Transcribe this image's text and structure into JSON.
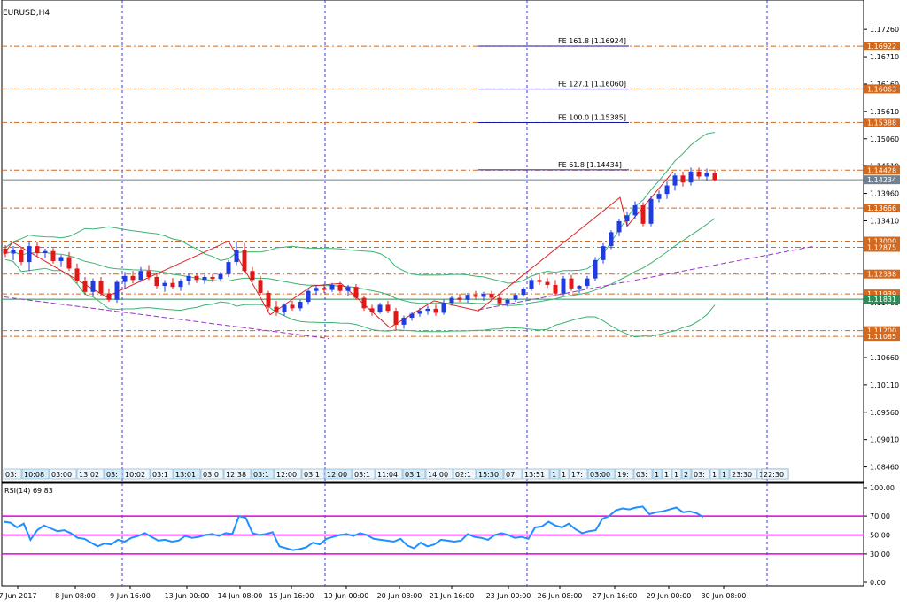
{
  "window": {
    "title": "EURUSD,H4"
  },
  "chart_data": {
    "type": "candlestick",
    "symbol": "EURUSD",
    "timeframe": "H4",
    "ylim": [
      1.0815,
      1.1785
    ],
    "y_ticks": [
      "1.17260",
      "1.16710",
      "1.16160",
      "1.15610",
      "1.15060",
      "1.14510",
      "1.13960",
      "1.13410",
      "1.12860",
      "1.12310",
      "1.11760",
      "1.11210",
      "1.10660",
      "1.10110",
      "1.09560",
      "1.09010",
      "1.08460"
    ],
    "x_ticks": [
      "7 Jun 2017",
      "8 Jun 08:00",
      "9 Jun 16:00",
      "13 Jun 00:00",
      "14 Jun 08:00",
      "15 Jun 16:00",
      "19 Jun 00:00",
      "20 Jun 08:00",
      "21 Jun 16:00",
      "23 Jun 00:00",
      "26 Jun 08:00",
      "27 Jun 16:00",
      "29 Jun 00:00",
      "30 Jun 08:00"
    ],
    "price_tags": [
      {
        "label": "1.16922",
        "value": 1.16922,
        "color": "#d2691e"
      },
      {
        "label": "1.16063",
        "value": 1.16063,
        "color": "#d2691e"
      },
      {
        "label": "1.15388",
        "value": 1.15388,
        "color": "#d2691e"
      },
      {
        "label": "1.14428",
        "value": 1.14428,
        "color": "#d2691e"
      },
      {
        "label": "1.14234",
        "value": 1.14234,
        "color": "#708090"
      },
      {
        "label": "1.13666",
        "value": 1.13666,
        "color": "#d2691e"
      },
      {
        "label": "1.13000",
        "value": 1.13,
        "color": "#d2691e"
      },
      {
        "label": "1.12875",
        "value": 1.12875,
        "color": "#d2691e"
      },
      {
        "label": "1.12338",
        "value": 1.12338,
        "color": "#d2691e"
      },
      {
        "label": "1.11939",
        "value": 1.11939,
        "color": "#d2691e"
      },
      {
        "label": "1.11831",
        "value": 1.11831,
        "color": "#2e8b57"
      },
      {
        "label": "1.11200",
        "value": 1.112,
        "color": "#d2691e"
      },
      {
        "label": "1.11085",
        "value": 1.11085,
        "color": "#d2691e"
      }
    ],
    "fibo_labels": [
      {
        "label": "FE 161.8 [1.16924]",
        "value": 1.16924
      },
      {
        "label": "FE 127.1 [1.16060]",
        "value": 1.1606
      },
      {
        "label": "FE 100.0 [1.15385]",
        "value": 1.15385
      },
      {
        "label": "FE 61.8 [1.14434]",
        "value": 1.14434
      }
    ],
    "candles": [
      [
        1.1285,
        1.1292,
        1.1268,
        1.1275
      ],
      [
        1.1275,
        1.129,
        1.1262,
        1.1283
      ],
      [
        1.1283,
        1.1288,
        1.1252,
        1.1258
      ],
      [
        1.1258,
        1.13,
        1.124,
        1.129
      ],
      [
        1.129,
        1.1298,
        1.127,
        1.1276
      ],
      [
        1.1276,
        1.1285,
        1.1265,
        1.128
      ],
      [
        1.128,
        1.1286,
        1.1255,
        1.126
      ],
      [
        1.126,
        1.1272,
        1.1248,
        1.1268
      ],
      [
        1.1268,
        1.1278,
        1.124,
        1.1245
      ],
      [
        1.1245,
        1.1255,
        1.1215,
        1.122
      ],
      [
        1.122,
        1.1228,
        1.1192,
        1.1198
      ],
      [
        1.1198,
        1.1225,
        1.119,
        1.122
      ],
      [
        1.122,
        1.1228,
        1.119,
        1.1195
      ],
      [
        1.1195,
        1.1205,
        1.1178,
        1.1182
      ],
      [
        1.1182,
        1.1222,
        1.1176,
        1.1218
      ],
      [
        1.1218,
        1.1238,
        1.1206,
        1.123
      ],
      [
        1.123,
        1.124,
        1.1215,
        1.1222
      ],
      [
        1.1222,
        1.1248,
        1.1218,
        1.124
      ],
      [
        1.124,
        1.1252,
        1.1222,
        1.1228
      ],
      [
        1.1228,
        1.1234,
        1.1205,
        1.121
      ],
      [
        1.121,
        1.1222,
        1.1198,
        1.1216
      ],
      [
        1.1216,
        1.1226,
        1.1204,
        1.1208
      ],
      [
        1.1208,
        1.1224,
        1.12,
        1.122
      ],
      [
        1.122,
        1.1236,
        1.1212,
        1.123
      ],
      [
        1.123,
        1.1236,
        1.1216,
        1.1222
      ],
      [
        1.1222,
        1.1232,
        1.1214,
        1.1228
      ],
      [
        1.1228,
        1.1234,
        1.1218,
        1.1224
      ],
      [
        1.1224,
        1.1238,
        1.122,
        1.1234
      ],
      [
        1.1234,
        1.1262,
        1.1228,
        1.1258
      ],
      [
        1.1258,
        1.13,
        1.1252,
        1.1282
      ],
      [
        1.1282,
        1.1296,
        1.1236,
        1.124
      ],
      [
        1.124,
        1.1248,
        1.1218,
        1.1222
      ],
      [
        1.1222,
        1.123,
        1.1192,
        1.1196
      ],
      [
        1.1196,
        1.12,
        1.116,
        1.1168
      ],
      [
        1.1168,
        1.118,
        1.115,
        1.1158
      ],
      [
        1.1158,
        1.1175,
        1.115,
        1.1172
      ],
      [
        1.1172,
        1.118,
        1.116,
        1.1165
      ],
      [
        1.1165,
        1.1182,
        1.116,
        1.1178
      ],
      [
        1.1178,
        1.1205,
        1.1172,
        1.12
      ],
      [
        1.12,
        1.1212,
        1.1192,
        1.1206
      ],
      [
        1.1206,
        1.1214,
        1.1196,
        1.1202
      ],
      [
        1.1202,
        1.1216,
        1.1198,
        1.1212
      ],
      [
        1.1212,
        1.1218,
        1.1196,
        1.12
      ],
      [
        1.12,
        1.1212,
        1.119,
        1.1208
      ],
      [
        1.1208,
        1.1214,
        1.1182,
        1.1186
      ],
      [
        1.1186,
        1.119,
        1.116,
        1.1165
      ],
      [
        1.1165,
        1.1172,
        1.115,
        1.1158
      ],
      [
        1.1158,
        1.1176,
        1.1154,
        1.1172
      ],
      [
        1.1172,
        1.118,
        1.1155,
        1.116
      ],
      [
        1.116,
        1.1166,
        1.112,
        1.1132
      ],
      [
        1.1132,
        1.115,
        1.1124,
        1.1146
      ],
      [
        1.1146,
        1.1158,
        1.114,
        1.1154
      ],
      [
        1.1154,
        1.1166,
        1.1148,
        1.116
      ],
      [
        1.116,
        1.117,
        1.1152,
        1.1164
      ],
      [
        1.1164,
        1.1172,
        1.115,
        1.1156
      ],
      [
        1.1156,
        1.1182,
        1.1152,
        1.1176
      ],
      [
        1.1176,
        1.119,
        1.117,
        1.1186
      ],
      [
        1.1186,
        1.1194,
        1.1178,
        1.1182
      ],
      [
        1.1182,
        1.1196,
        1.1176,
        1.1192
      ],
      [
        1.1192,
        1.12,
        1.1182,
        1.1188
      ],
      [
        1.1188,
        1.1198,
        1.118,
        1.1194
      ],
      [
        1.1194,
        1.12,
        1.1182,
        1.1186
      ],
      [
        1.1186,
        1.1194,
        1.117,
        1.1175
      ],
      [
        1.1175,
        1.1185,
        1.1168,
        1.1182
      ],
      [
        1.1182,
        1.1196,
        1.1178,
        1.1192
      ],
      [
        1.1192,
        1.1208,
        1.1188,
        1.1204
      ],
      [
        1.1204,
        1.1226,
        1.12,
        1.1222
      ],
      [
        1.1222,
        1.1232,
        1.1212,
        1.1218
      ],
      [
        1.1218,
        1.1226,
        1.1206,
        1.1212
      ],
      [
        1.1212,
        1.1222,
        1.119,
        1.1195
      ],
      [
        1.1195,
        1.123,
        1.119,
        1.1225
      ],
      [
        1.1225,
        1.1232,
        1.12,
        1.1205
      ],
      [
        1.1205,
        1.1212,
        1.1195,
        1.121
      ],
      [
        1.121,
        1.123,
        1.1205,
        1.1225
      ],
      [
        1.1225,
        1.1268,
        1.122,
        1.1262
      ],
      [
        1.1262,
        1.1296,
        1.1255,
        1.129
      ],
      [
        1.129,
        1.1322,
        1.1284,
        1.1318
      ],
      [
        1.1318,
        1.1345,
        1.131,
        1.134
      ],
      [
        1.134,
        1.136,
        1.133,
        1.1352
      ],
      [
        1.1352,
        1.138,
        1.1345,
        1.1372
      ],
      [
        1.1372,
        1.1378,
        1.133,
        1.1335
      ],
      [
        1.1335,
        1.139,
        1.133,
        1.1385
      ],
      [
        1.1385,
        1.1402,
        1.1378,
        1.1395
      ],
      [
        1.1395,
        1.142,
        1.1385,
        1.1412
      ],
      [
        1.1412,
        1.1438,
        1.1402,
        1.1432
      ],
      [
        1.1432,
        1.144,
        1.141,
        1.1418
      ],
      [
        1.1418,
        1.1448,
        1.1412,
        1.144
      ],
      [
        1.144,
        1.1448,
        1.1425,
        1.143
      ],
      [
        1.143,
        1.1446,
        1.1422,
        1.1438
      ],
      [
        1.1438,
        1.1444,
        1.142,
        1.1423
      ]
    ],
    "bars_x_start": 6,
    "bars_x_step": 9.0,
    "rsi": {
      "label": "RSI(14) 69.83",
      "ylim": [
        0,
        100
      ],
      "y_ticks": [
        "100.00",
        "70.00",
        "50.00",
        "30.00",
        "0.00"
      ],
      "levels": [
        70,
        50,
        30
      ],
      "values": [
        64,
        63,
        58,
        62,
        45,
        55,
        60,
        57,
        54,
        55,
        52,
        47,
        46,
        42,
        38,
        41,
        40,
        45,
        43,
        47,
        49,
        52,
        48,
        44,
        45,
        43,
        44,
        49,
        47,
        48,
        50,
        51,
        49,
        52,
        51,
        70,
        68,
        52,
        50,
        51,
        53,
        38,
        36,
        34,
        35,
        37,
        42,
        40,
        46,
        48,
        50,
        51,
        49,
        52,
        50,
        46,
        45,
        44,
        43,
        46,
        39,
        36,
        42,
        38,
        40,
        45,
        44,
        43,
        44,
        51,
        48,
        47,
        45,
        50,
        52,
        50,
        47,
        48,
        46,
        58,
        59,
        64,
        60,
        58,
        62,
        56,
        52,
        54,
        55,
        67,
        70,
        76,
        78,
        77,
        79,
        80,
        72,
        74,
        75,
        77,
        79,
        74,
        75,
        73,
        69
      ]
    },
    "time_labels": [
      "03:",
      "10:08",
      "03:00",
      "13:02",
      "03:",
      "10:02",
      "03:1",
      "13:01",
      "03:0",
      "12:38",
      "03:1",
      "12:00",
      "03:1",
      "12:00",
      "03:1",
      "11:04",
      "03:1",
      "14:00",
      "02:1",
      "15:30",
      "07:",
      "13:51",
      "1",
      "1",
      "17:",
      "03:00",
      "19:",
      "03:",
      "1",
      "1",
      "1",
      "2",
      "03:",
      "1",
      "1",
      "23:30",
      "1",
      "1",
      "20:00",
      "1",
      "1",
      "17:30",
      "1",
      "1",
      "22:30"
    ]
  }
}
